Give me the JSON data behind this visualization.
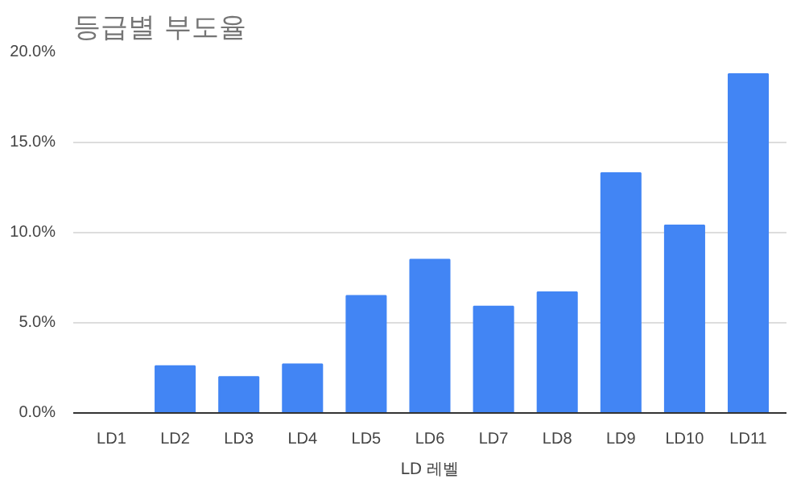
{
  "chart_data": {
    "type": "bar",
    "title": "등급별 부도율",
    "xlabel": "LD 레벨",
    "categories": [
      "LD1",
      "LD2",
      "LD3",
      "LD4",
      "LD5",
      "LD6",
      "LD7",
      "LD8",
      "LD9",
      "LD10",
      "LD11"
    ],
    "values": [
      0,
      2.6,
      2.0,
      2.7,
      6.5,
      8.5,
      5.9,
      6.7,
      13.3,
      10.4,
      18.8
    ],
    "color": "#4285f4",
    "ylim": [
      0,
      20
    ],
    "yticks": [
      {
        "value": 0,
        "label": "0.0%"
      },
      {
        "value": 5,
        "label": "5.0%"
      },
      {
        "value": 10,
        "label": "10.0%"
      },
      {
        "value": 15,
        "label": "15.0%"
      },
      {
        "value": 20,
        "label": "20.0%"
      }
    ],
    "grid": "y"
  }
}
